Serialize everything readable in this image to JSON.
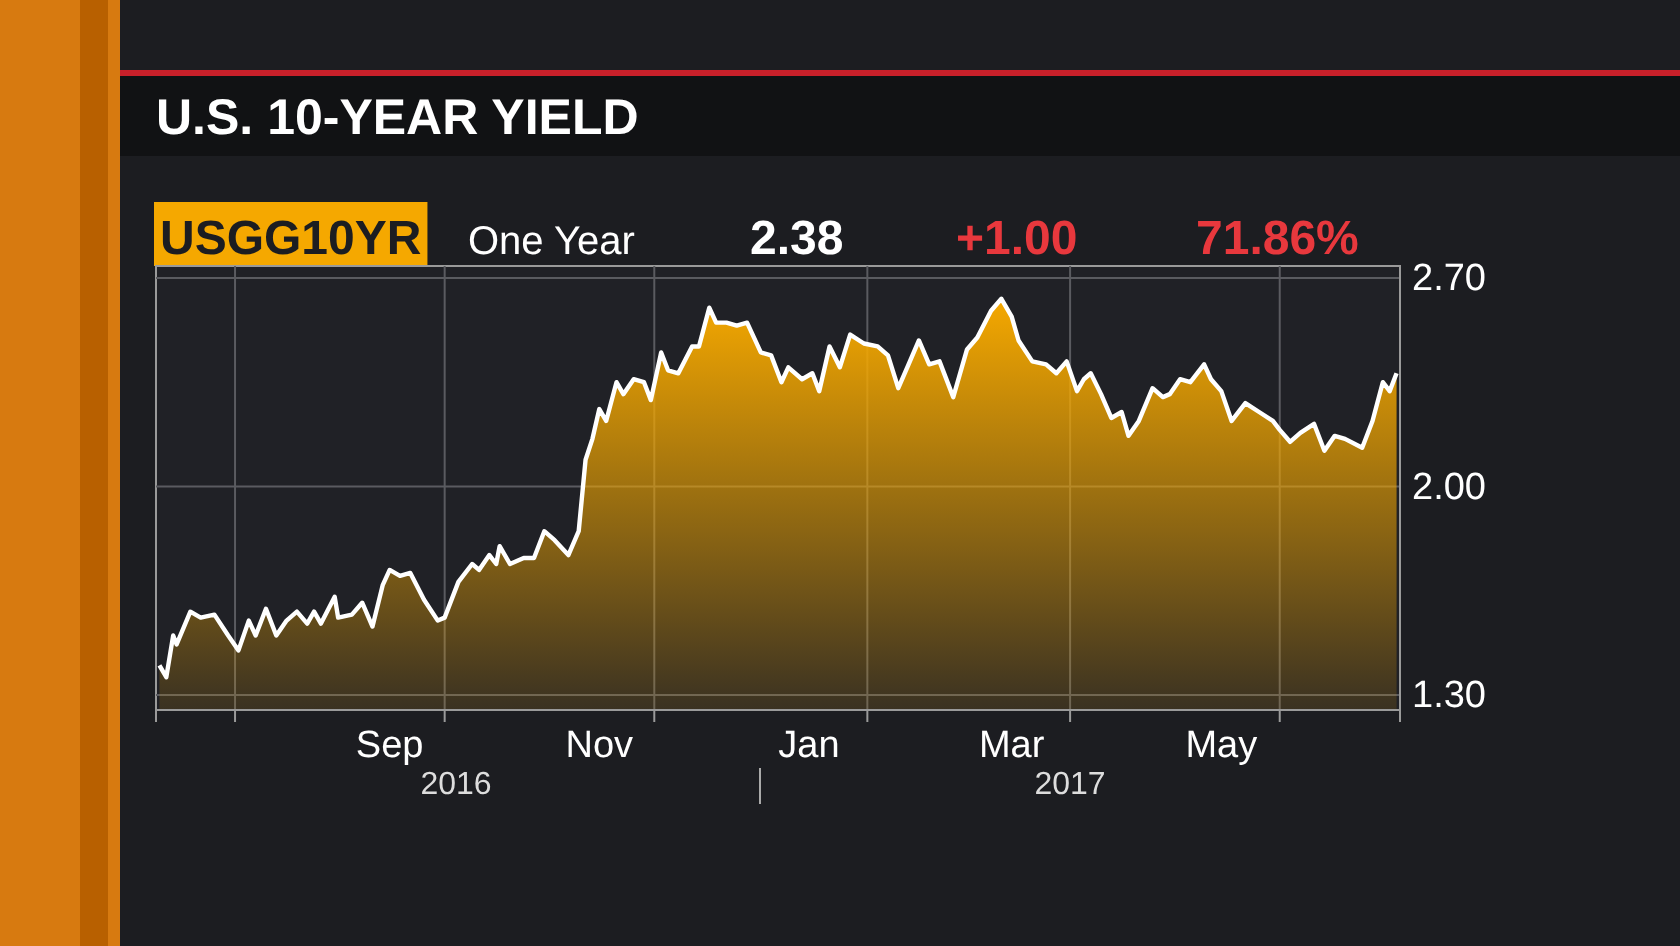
{
  "chart_data": {
    "type": "area",
    "title": "U.S. 10-YEAR YIELD",
    "annotations": [
      "USGG10YR",
      "One Year",
      "2.38",
      "+1.00",
      "71.86%",
      "2016",
      "2017"
    ],
    "x": [
      "2016-07-10",
      "2016-07-12",
      "2016-07-14",
      "2016-07-15",
      "2016-07-19",
      "2016-07-22",
      "2016-07-26",
      "2016-07-30",
      "2016-08-02",
      "2016-08-05",
      "2016-08-07",
      "2016-08-10",
      "2016-08-13",
      "2016-08-16",
      "2016-08-19",
      "2016-08-22",
      "2016-08-24",
      "2016-08-26",
      "2016-08-30",
      "2016-08-31",
      "2016-09-04",
      "2016-09-07",
      "2016-09-10",
      "2016-09-13",
      "2016-09-15",
      "2016-09-18",
      "2016-09-21",
      "2016-09-25",
      "2016-09-29",
      "2016-10-01",
      "2016-10-05",
      "2016-10-09",
      "2016-10-11",
      "2016-10-14",
      "2016-10-16",
      "2016-10-17",
      "2016-10-20",
      "2016-10-24",
      "2016-10-27",
      "2016-10-30",
      "2016-11-02",
      "2016-11-06",
      "2016-11-09",
      "2016-11-11",
      "2016-11-13",
      "2016-11-15",
      "2016-11-17",
      "2016-11-20",
      "2016-11-22",
      "2016-11-25",
      "2016-11-28",
      "2016-11-30",
      "2016-12-03",
      "2016-12-05",
      "2016-12-08",
      "2016-12-12",
      "2016-12-14",
      "2016-12-17",
      "2016-12-19",
      "2016-12-22",
      "2016-12-25",
      "2016-12-28",
      "2017-01-01",
      "2017-01-04",
      "2017-01-07",
      "2017-01-09",
      "2017-01-13",
      "2017-01-16",
      "2017-01-18",
      "2017-01-21",
      "2017-01-24",
      "2017-01-27",
      "2017-01-31",
      "2017-02-04",
      "2017-02-07",
      "2017-02-10",
      "2017-02-13",
      "2017-02-16",
      "2017-02-19",
      "2017-02-22",
      "2017-02-26",
      "2017-03-02",
      "2017-03-05",
      "2017-03-09",
      "2017-03-12",
      "2017-03-15",
      "2017-03-17",
      "2017-03-21",
      "2017-03-25",
      "2017-03-28",
      "2017-03-31",
      "2017-04-03",
      "2017-04-05",
      "2017-04-07",
      "2017-04-10",
      "2017-04-13",
      "2017-04-16",
      "2017-04-18",
      "2017-04-21",
      "2017-04-25",
      "2017-04-28",
      "2017-04-30",
      "2017-05-03",
      "2017-05-06",
      "2017-05-10",
      "2017-05-12",
      "2017-05-15",
      "2017-05-18",
      "2017-05-22",
      "2017-05-26",
      "2017-05-30",
      "2017-06-01",
      "2017-06-04",
      "2017-06-07",
      "2017-06-11",
      "2017-06-14",
      "2017-06-17",
      "2017-06-20",
      "2017-06-25",
      "2017-06-28",
      "2017-07-01",
      "2017-07-03",
      "2017-07-05"
    ],
    "series": [
      {
        "color": "#f5a800",
        "values": [
          1.4,
          1.36,
          1.5,
          1.47,
          1.58,
          1.56,
          1.57,
          1.5,
          1.45,
          1.55,
          1.5,
          1.59,
          1.5,
          1.55,
          1.58,
          1.54,
          1.58,
          1.54,
          1.63,
          1.56,
          1.57,
          1.61,
          1.53,
          1.67,
          1.72,
          1.7,
          1.71,
          1.62,
          1.55,
          1.56,
          1.68,
          1.74,
          1.72,
          1.77,
          1.74,
          1.8,
          1.74,
          1.76,
          1.76,
          1.85,
          1.82,
          1.77,
          1.85,
          2.09,
          2.16,
          2.26,
          2.22,
          2.35,
          2.31,
          2.36,
          2.35,
          2.29,
          2.45,
          2.39,
          2.38,
          2.47,
          2.47,
          2.6,
          2.55,
          2.55,
          2.54,
          2.55,
          2.45,
          2.44,
          2.35,
          2.4,
          2.36,
          2.38,
          2.32,
          2.47,
          2.4,
          2.51,
          2.48,
          2.47,
          2.44,
          2.33,
          2.41,
          2.49,
          2.41,
          2.42,
          2.3,
          2.46,
          2.5,
          2.59,
          2.63,
          2.57,
          2.49,
          2.42,
          2.41,
          2.38,
          2.42,
          2.32,
          2.36,
          2.38,
          2.31,
          2.23,
          2.25,
          2.17,
          2.22,
          2.33,
          2.3,
          2.31,
          2.36,
          2.35,
          2.41,
          2.36,
          2.32,
          2.22,
          2.28,
          2.25,
          2.22,
          2.19,
          2.15,
          2.18,
          2.21,
          2.12,
          2.17,
          2.16,
          2.13,
          2.22,
          2.35,
          2.32,
          2.38
        ]
      }
    ],
    "xlim": [
      "2016-07-09",
      "2017-07-06"
    ],
    "xticks": [
      {
        "value": "2016-08-01",
        "label": null
      },
      {
        "value": "2016-09-15",
        "label": "Sep"
      },
      {
        "value": "2016-10-01",
        "label": null
      },
      {
        "value": "2016-11-15",
        "label": "Nov"
      },
      {
        "value": "2016-12-01",
        "label": null
      },
      {
        "value": "2017-01-15",
        "label": "Jan"
      },
      {
        "value": "2017-02-01",
        "label": null
      },
      {
        "value": "2017-03-15",
        "label": "Mar"
      },
      {
        "value": "2017-04-01",
        "label": null
      },
      {
        "value": "2017-05-15",
        "label": "May"
      },
      {
        "value": "2017-06-01",
        "label": null
      }
    ],
    "ylim": [
      1.25,
      2.74
    ],
    "yticks": [
      {
        "value": 1.3,
        "label": "1.30"
      },
      {
        "value": 2.0,
        "label": "2.00"
      },
      {
        "value": 2.7,
        "label": "2.70"
      }
    ],
    "grid": true
  }
}
